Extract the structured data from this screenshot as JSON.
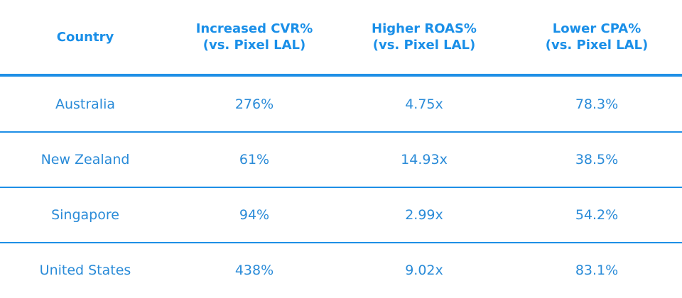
{
  "table": {
    "header": [
      [
        "Country"
      ],
      [
        "Increased CVR%",
        "(vs. Pixel LAL)"
      ],
      [
        "Higher ROAS%",
        "(vs. Pixel LAL)"
      ],
      [
        "Lower CPA%",
        "(vs. Pixel LAL)"
      ]
    ],
    "rows": [
      [
        "Australia",
        "276%",
        "4.75x",
        "78.3%"
      ],
      [
        "New Zealand",
        "61%",
        "14.93x",
        "38.5%"
      ],
      [
        "Singapore",
        "94%",
        "2.99x",
        "54.2%"
      ],
      [
        "United States",
        "438%",
        "9.02x",
        "83.1%"
      ]
    ]
  }
}
